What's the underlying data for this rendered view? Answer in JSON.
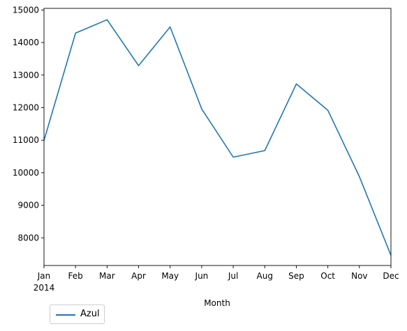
{
  "chart_data": {
    "type": "line",
    "categories": [
      "Jan",
      "Feb",
      "Mar",
      "Apr",
      "May",
      "Jun",
      "Jul",
      "Aug",
      "Sep",
      "Oct",
      "Nov",
      "Dec"
    ],
    "year_label": "2014",
    "series": [
      {
        "name": "Azul",
        "color": "#1f77b4",
        "values": [
          10990,
          14290,
          14700,
          13290,
          14480,
          11960,
          10480,
          10680,
          12730,
          11920,
          9880,
          7460
        ]
      }
    ],
    "title": "",
    "xlabel": "Month",
    "ylabel": "",
    "ylim": [
      7150,
      15050
    ],
    "yticks": [
      8000,
      9000,
      10000,
      11000,
      12000,
      13000,
      14000,
      15000
    ],
    "grid": false,
    "legend_position": "lower-left, below axes"
  }
}
